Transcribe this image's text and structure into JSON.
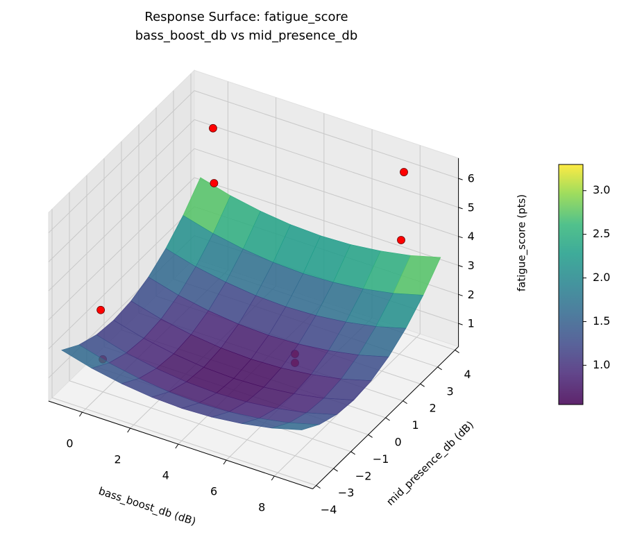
{
  "chart_data": {
    "type": "surface3d",
    "title_lines": [
      "Response Surface: fatigue_score",
      "bass_boost_db vs mid_presence_db"
    ],
    "xlabel": "bass_boost_db (dB)",
    "ylabel": "mid_presence_db (dB)",
    "zlabel": "fatigue_score (pts)",
    "xlim": [
      -1.4,
      9.6
    ],
    "ylim": [
      -4.2,
      4.2
    ],
    "zlim": [
      0.2,
      6.7
    ],
    "xticks": [
      0,
      2,
      4,
      6,
      8
    ],
    "yticks": [
      {
        "value": -4,
        "label": "−4"
      },
      {
        "value": -3,
        "label": "−3"
      },
      {
        "value": -2,
        "label": "−2"
      },
      {
        "value": -1,
        "label": "−1"
      },
      0,
      1,
      2,
      3,
      4
    ],
    "zticks": [
      1,
      2,
      3,
      4,
      5,
      6
    ],
    "surface": {
      "colormap": "viridis",
      "x": [
        -1,
        0.25,
        1.5,
        2.75,
        4,
        5.25,
        6.5,
        7.75,
        9
      ],
      "y": [
        -4,
        -3,
        -2,
        -1,
        0,
        1,
        2,
        3,
        4
      ],
      "z": [
        [
          1.95,
          1.67,
          1.48,
          1.36,
          1.32,
          1.36,
          1.48,
          1.67,
          1.95
        ],
        [
          1.55,
          1.27,
          1.08,
          0.96,
          0.92,
          0.96,
          1.08,
          1.27,
          1.55
        ],
        [
          1.31,
          1.03,
          0.84,
          0.72,
          0.68,
          0.72,
          0.84,
          1.03,
          1.31
        ],
        [
          1.23,
          0.95,
          0.76,
          0.64,
          0.6,
          0.64,
          0.76,
          0.95,
          1.23
        ],
        [
          1.31,
          1.03,
          0.84,
          0.72,
          0.68,
          0.72,
          0.84,
          1.03,
          1.31
        ],
        [
          1.55,
          1.27,
          1.08,
          0.96,
          0.92,
          0.96,
          1.08,
          1.27,
          1.55
        ],
        [
          1.95,
          1.67,
          1.48,
          1.36,
          1.32,
          1.36,
          1.48,
          1.67,
          1.95
        ],
        [
          2.51,
          2.23,
          2.04,
          1.92,
          1.88,
          1.92,
          2.04,
          2.23,
          2.51
        ],
        [
          3.23,
          2.95,
          2.76,
          2.64,
          2.6,
          2.64,
          2.76,
          2.95,
          3.23
        ]
      ]
    },
    "points": {
      "color": "#ff0000",
      "x": [
        0,
        0.1,
        8,
        8,
        -0.5,
        -0.5,
        5,
        5.5
      ],
      "y": [
        3.34,
        3.26,
        3.27,
        3.11,
        -2.44,
        -2.32,
        1.14,
        0.45
      ],
      "z": [
        5.59,
        3.77,
        6.32,
        4.07,
        2.56,
        0.79,
        0.47,
        0.7
      ]
    },
    "colorbar": {
      "clim": [
        0.55,
        3.3
      ],
      "ticks": [
        {
          "value": 1,
          "label": "1.0"
        },
        {
          "value": 1.5,
          "label": "1.5"
        },
        {
          "value": 2,
          "label": "2.0"
        },
        {
          "value": 2.5,
          "label": "2.5"
        },
        {
          "value": 3,
          "label": "3.0"
        }
      ]
    }
  }
}
